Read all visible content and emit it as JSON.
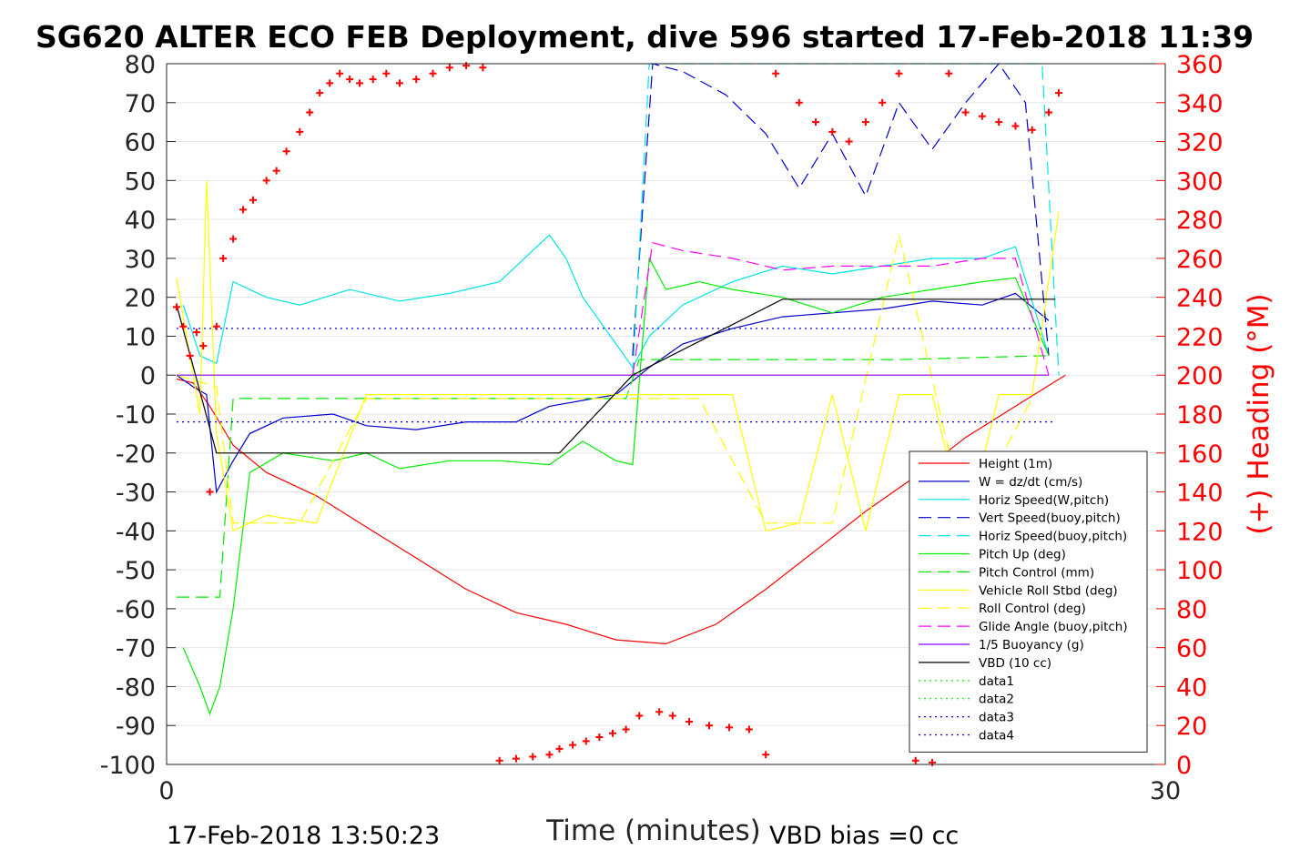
{
  "chart_data": {
    "type": "line",
    "title": "SG620 ALTER ECO FEB Deployment, dive 596 started 17-Feb-2018 11:39",
    "xlabel": "Time (minutes)",
    "ylabel_right": "(+) Heading (°M)",
    "xlim": [
      0,
      30
    ],
    "ylim": [
      -100,
      80
    ],
    "ylim_right": [
      0,
      360
    ],
    "xticks": [
      "0",
      "30"
    ],
    "yticks": [
      "80",
      "70",
      "60",
      "50",
      "40",
      "30",
      "20",
      "10",
      "0",
      "-10",
      "-20",
      "-30",
      "-40",
      "-50",
      "-60",
      "-70",
      "-80",
      "-90",
      "-100"
    ],
    "yticks_right": [
      "360",
      "340",
      "320",
      "300",
      "280",
      "260",
      "240",
      "220",
      "200",
      "180",
      "160",
      "140",
      "120",
      "100",
      "80",
      "60",
      "40",
      "20",
      "0"
    ],
    "grid": "horizontal",
    "legend_position": "bottom-right",
    "footer_left": "17-Feb-2018 13:50:23",
    "footer_right": "VBD bias =0 cc",
    "series": [
      {
        "name": "Height (1m)",
        "color": "#ff0000",
        "style": "solid",
        "x": [
          0.3,
          0.8,
          1.3,
          2.0,
          3.0,
          4.5,
          6.0,
          7.5,
          9.0,
          10.5,
          12.0,
          13.5,
          15.0,
          16.5,
          18.0,
          19.5,
          21.0,
          22.5,
          24.0,
          25.5,
          27.0
        ],
        "y": [
          -1,
          -2,
          -8,
          -18,
          -25,
          -31,
          -39,
          -47,
          -55,
          -61,
          -64,
          -68,
          -69,
          -64,
          -55,
          -45,
          -35,
          -26,
          -16,
          -8,
          0
        ]
      },
      {
        "name": "W = dz/dt (cm/s)",
        "color": "#0000cc",
        "style": "solid",
        "x": [
          0.3,
          0.8,
          1.2,
          1.5,
          2.0,
          2.5,
          3.5,
          5.0,
          6.0,
          7.5,
          9.0,
          10.5,
          11.5,
          13.5,
          14.5,
          15.5,
          17.0,
          18.5,
          20.0,
          21.5,
          23.0,
          24.5,
          25.5,
          26.5
        ],
        "y": [
          0,
          -3,
          -5,
          -30,
          -22,
          -15,
          -11,
          -10,
          -13,
          -14,
          -12,
          -12,
          -8,
          -5,
          2,
          8,
          12,
          15,
          16,
          17,
          19,
          18,
          21,
          14
        ]
      },
      {
        "name": "Horiz Speed(W,pitch)",
        "color": "#00e5e5",
        "style": "solid",
        "x": [
          0.5,
          1.0,
          1.5,
          2.0,
          3.0,
          4.0,
          5.5,
          7.0,
          8.5,
          10.0,
          11.5,
          12.0,
          12.5,
          13.5,
          14.0,
          14.5,
          15.5,
          17.0,
          18.5,
          20.0,
          21.5,
          23.0,
          24.5,
          25.5,
          26.5
        ],
        "y": [
          18,
          5,
          3,
          24,
          20,
          18,
          22,
          19,
          21,
          24,
          36,
          30,
          20,
          8,
          2,
          10,
          18,
          24,
          28,
          26,
          28,
          30,
          30,
          33,
          5
        ]
      },
      {
        "name": "Vert Speed(buoy,pitch)",
        "color": "#0000cc",
        "style": "dashed",
        "x": [
          14.0,
          14.6,
          15.5,
          16.8,
          18.0,
          19.0,
          20.0,
          21.0,
          22.0,
          23.0,
          24.0,
          25.0,
          25.8,
          26.5
        ],
        "y": [
          5,
          80,
          78,
          72,
          62,
          48,
          62,
          46,
          70,
          58,
          70,
          80,
          70,
          5
        ]
      },
      {
        "name": "Horiz Speed(buoy,pitch)",
        "color": "#00e5e5",
        "style": "dashed",
        "x": [
          14.0,
          14.5,
          14.9,
          15.5,
          25.5,
          26.3,
          26.8
        ],
        "y": [
          0,
          80,
          80,
          80,
          80,
          80,
          0
        ]
      },
      {
        "name": "Pitch Up (deg)",
        "color": "#00ee00",
        "style": "solid",
        "x": [
          0.5,
          1.0,
          1.3,
          1.6,
          2.0,
          2.5,
          3.5,
          5.0,
          6.0,
          7.0,
          8.5,
          10.0,
          11.5,
          12.5,
          13.5,
          14.0,
          14.5,
          15.0,
          16.0,
          17.0,
          18.5,
          20.0,
          21.5,
          23.0,
          24.5,
          25.5,
          26.5
        ],
        "y": [
          -70,
          -80,
          -87,
          -80,
          -60,
          -25,
          -20,
          -22,
          -20,
          -24,
          -22,
          -22,
          -23,
          -17,
          -22,
          -23,
          30,
          22,
          24,
          22,
          20,
          16,
          20,
          22,
          24,
          25,
          5
        ]
      },
      {
        "name": "Pitch Control (mm)",
        "color": "#00ee00",
        "style": "dashed",
        "x": [
          0.3,
          1.4,
          1.6,
          2.0,
          13.8,
          14.2,
          18.0,
          22.0,
          26.5
        ],
        "y": [
          -57,
          -57,
          -57,
          -6,
          -6,
          4,
          4,
          4,
          5
        ]
      },
      {
        "name": "Vehicle Roll Stbd (deg)",
        "color": "#ffff00",
        "style": "solid",
        "x": [
          0.3,
          1.0,
          1.2,
          1.5,
          2.0,
          3.0,
          4.5,
          6.0,
          7.5,
          9.0,
          10.5,
          12.0,
          13.5,
          14.5,
          16.0,
          17.0,
          18.0,
          19.0,
          20.0,
          21.0,
          22.0,
          23.0,
          24.0,
          25.0,
          26.0,
          26.8
        ],
        "y": [
          25,
          -10,
          50,
          -15,
          -40,
          -36,
          -38,
          -5,
          -5,
          -5,
          -5,
          -5,
          -5,
          -5,
          -5,
          -5,
          -40,
          -38,
          -5,
          -40,
          -5,
          -5,
          -40,
          -5,
          -5,
          42
        ]
      },
      {
        "name": "Roll Control (deg)",
        "color": "#ffff00",
        "style": "dashed",
        "x": [
          0.3,
          1.5,
          2.0,
          4.0,
          6.0,
          8.0,
          10.0,
          12.0,
          14.0,
          16.0,
          18.0,
          20.0,
          22.0,
          24.0,
          26.0
        ],
        "y": [
          0,
          -3,
          -38,
          -38,
          -6,
          -6,
          -6,
          -6,
          -6,
          -6,
          -38,
          -38,
          36,
          -38,
          -6
        ]
      },
      {
        "name": "Glide Angle (buoy,pitch)",
        "color": "#ff00ff",
        "style": "dashed",
        "x": [
          14.0,
          14.6,
          15.5,
          17.0,
          18.5,
          20.0,
          21.5,
          23.0,
          24.5,
          25.5,
          26.5
        ],
        "y": [
          0,
          34,
          32,
          30,
          27,
          28,
          28,
          28,
          30,
          30,
          0
        ]
      },
      {
        "name": "1/5 Buoyancy (g)",
        "color": "#8800ff",
        "style": "solid",
        "x": [
          0.3,
          14.0,
          14.6,
          26.5
        ],
        "y": [
          0,
          0,
          0,
          0
        ]
      },
      {
        "name": "VBD (10 cc)",
        "color": "#000000",
        "style": "solid",
        "x": [
          0.3,
          1.5,
          11.8,
          14.0,
          18.5,
          26.7
        ],
        "y": [
          18,
          -20,
          -20,
          0,
          19.5,
          19.5
        ]
      },
      {
        "name": "data1",
        "color": "#00ee00",
        "style": "dotted",
        "x": [],
        "y": []
      },
      {
        "name": "data2",
        "color": "#00ee00",
        "style": "dotted",
        "x": [],
        "y": []
      },
      {
        "name": "data3",
        "color": "#0000cc",
        "style": "dotted",
        "x": [
          0.3,
          26.7
        ],
        "y": [
          12,
          12
        ]
      },
      {
        "name": "data4",
        "color": "#0000cc",
        "style": "dotted",
        "x": [
          0.3,
          26.7
        ],
        "y": [
          -12,
          -12
        ]
      },
      {
        "name": "Heading",
        "color": "#ff0000",
        "style": "markers",
        "axis": "right",
        "x": [
          0.3,
          0.5,
          0.7,
          0.9,
          1.1,
          1.3,
          1.5,
          1.7,
          2.0,
          2.3,
          2.6,
          3.0,
          3.3,
          3.6,
          4.0,
          4.3,
          4.6,
          4.9,
          5.2,
          5.5,
          5.8,
          6.2,
          6.6,
          7.0,
          7.5,
          8.0,
          8.5,
          9.0,
          9.5,
          10.0,
          10.5,
          11.0,
          11.5,
          11.8,
          12.2,
          12.6,
          13.0,
          13.4,
          13.8,
          14.2,
          14.8,
          15.2,
          15.7,
          16.3,
          16.9,
          17.5,
          18.0,
          18.3,
          19.0,
          19.5,
          20.0,
          20.5,
          21.0,
          21.5,
          22.0,
          22.5,
          23.0,
          23.5,
          24.0,
          24.5,
          25.0,
          25.5,
          26.0,
          26.5,
          26.8
        ],
        "y": [
          235,
          225,
          210,
          222,
          215,
          140,
          225,
          260,
          270,
          285,
          290,
          300,
          305,
          315,
          325,
          335,
          345,
          350,
          355,
          352,
          350,
          352,
          355,
          350,
          352,
          355,
          358,
          359,
          358,
          2,
          3,
          4,
          5,
          8,
          10,
          12,
          14,
          16,
          18,
          25,
          27,
          25,
          22,
          20,
          19,
          18,
          5,
          355,
          340,
          330,
          325,
          320,
          330,
          340,
          355,
          2,
          1,
          355,
          335,
          333,
          330,
          328,
          326,
          335,
          345
        ]
      }
    ]
  }
}
